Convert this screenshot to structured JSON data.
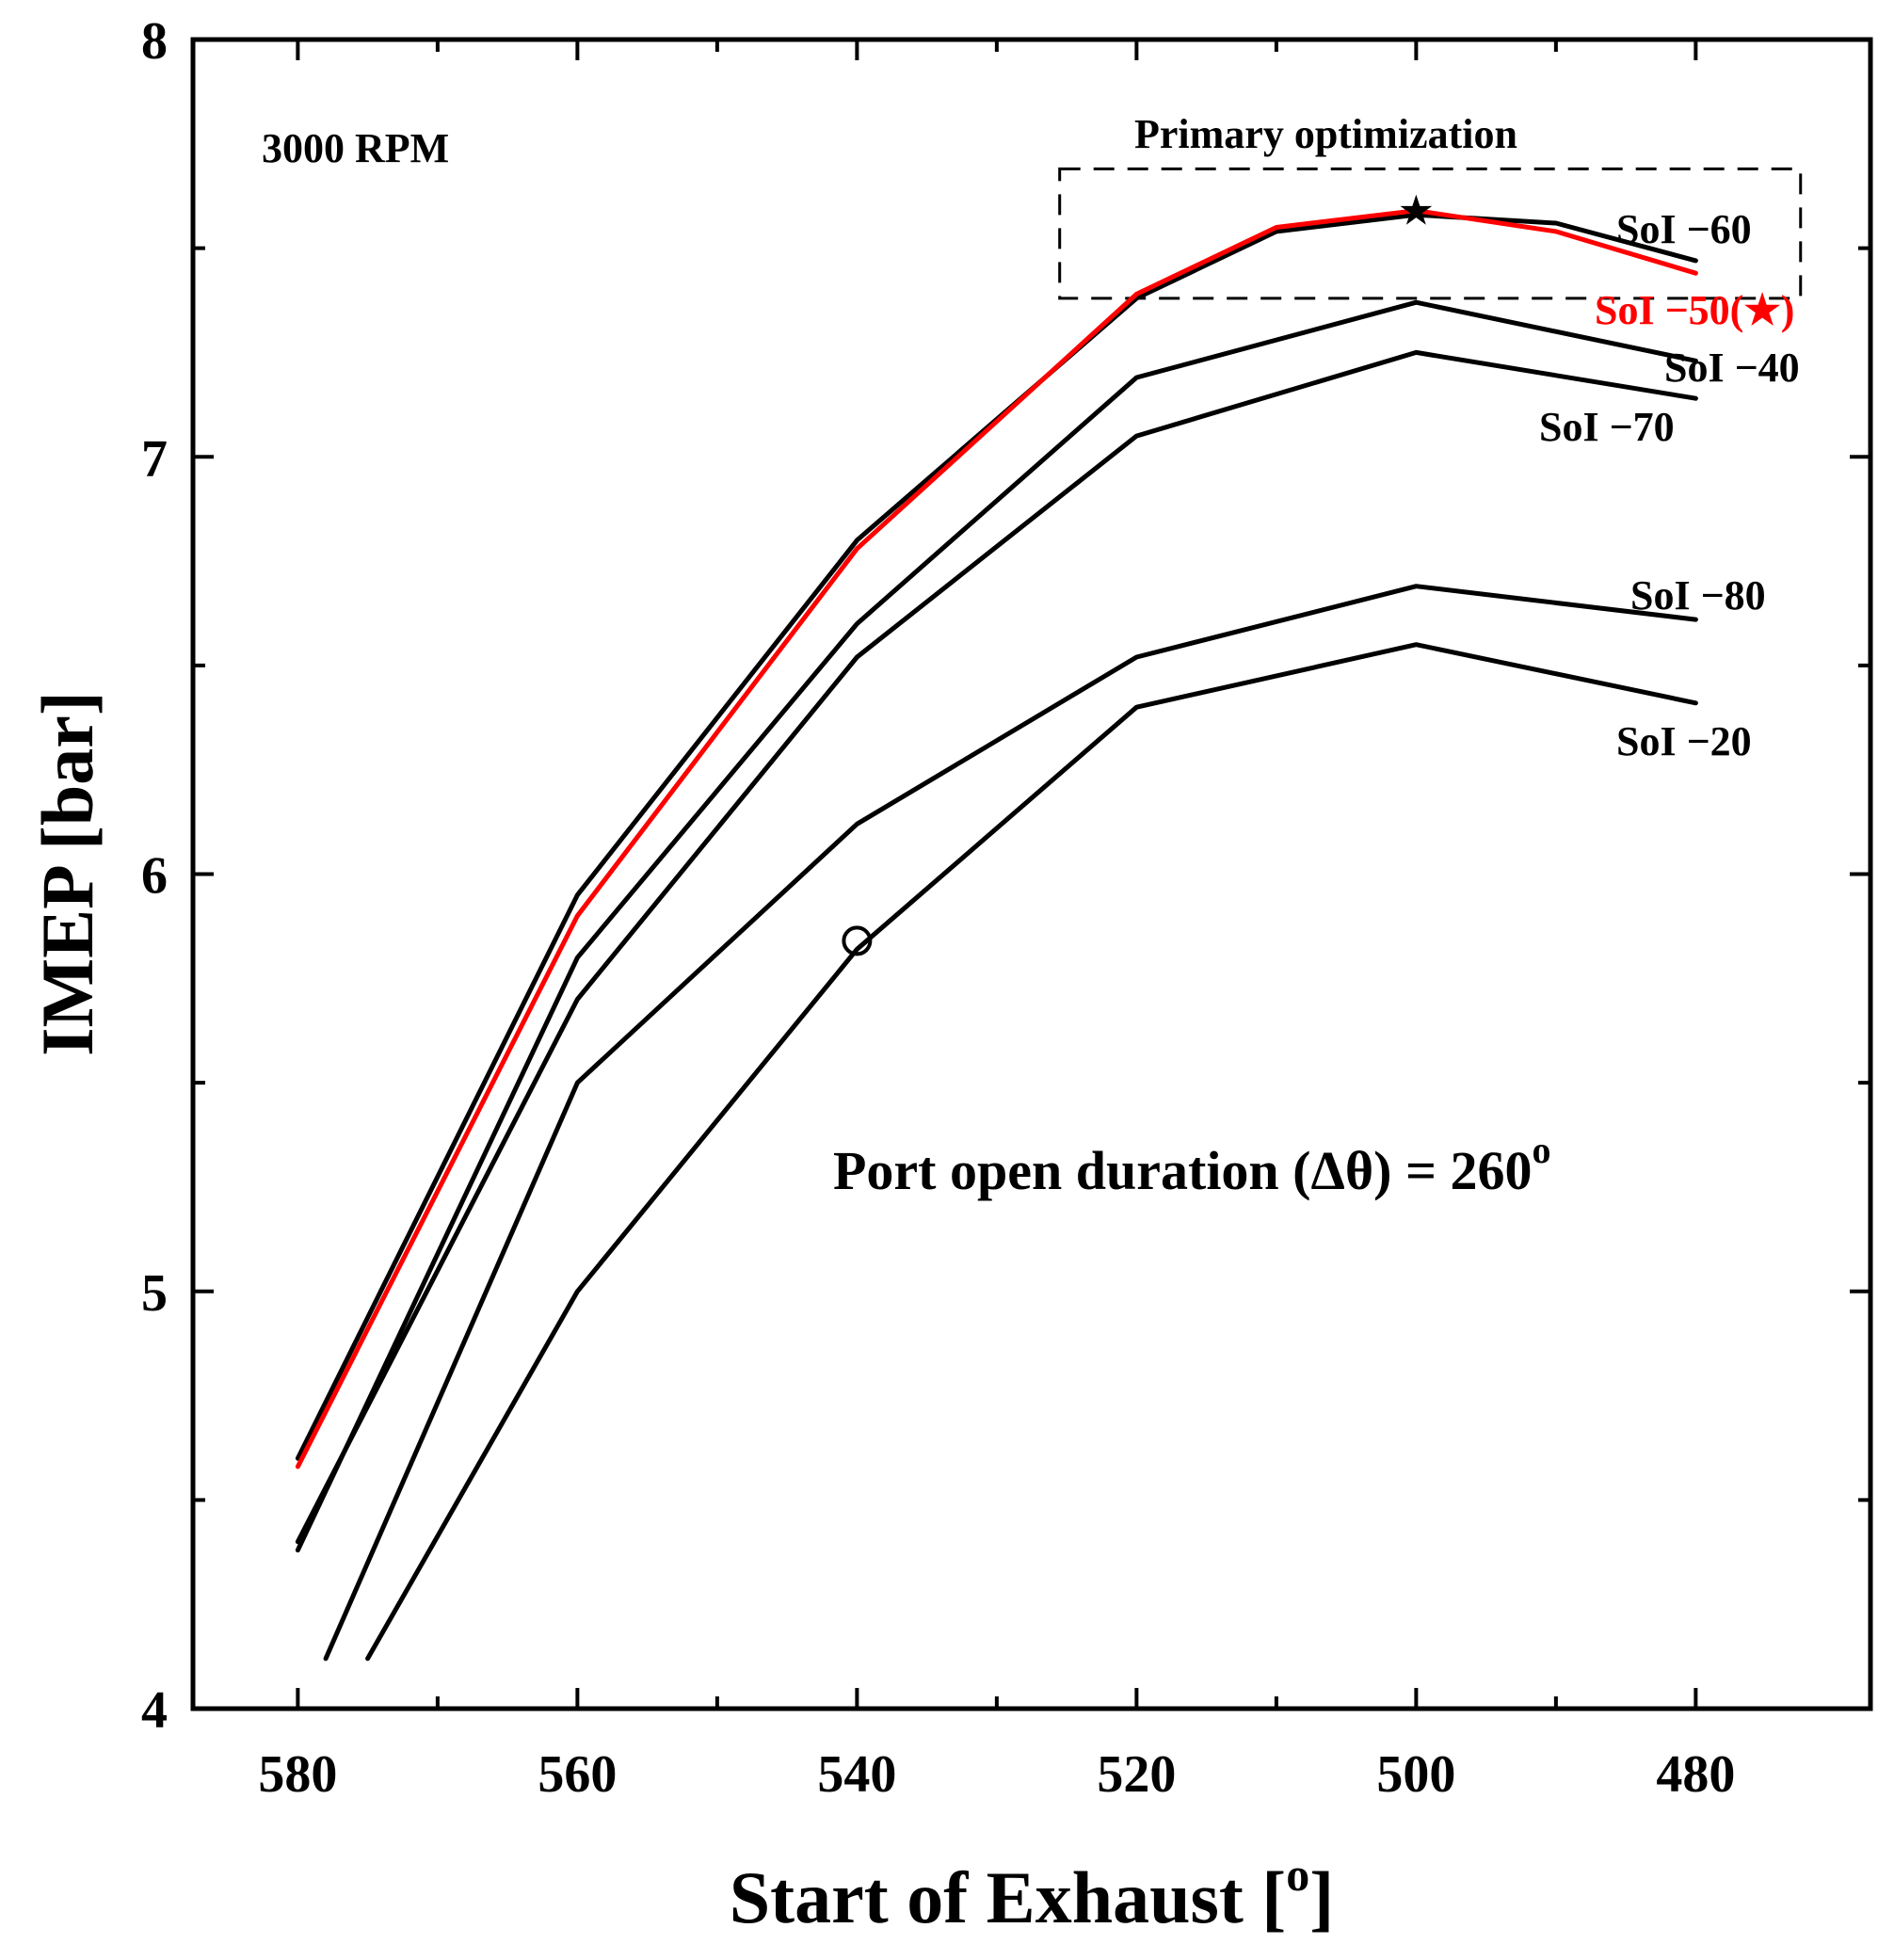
{
  "chart_data": {
    "type": "line",
    "xlabel": "Start  of  Exhaust [",
    "xlabel_sup": "o",
    "xlabel_end": "]",
    "ylabel": "IMEP [bar]",
    "xlim": [
      587.5,
      467.5
    ],
    "ylim": [
      4,
      8
    ],
    "x_ticks": [
      580,
      560,
      540,
      520,
      500,
      480
    ],
    "x_minor_ticks": [
      570,
      550,
      530,
      510,
      490
    ],
    "y_ticks": [
      4,
      5,
      6,
      7,
      8
    ],
    "y_minor_ticks": [
      4.5,
      5.5,
      6.5,
      7.5
    ],
    "grid": false,
    "series": [
      {
        "name": "SoI −60",
        "label": "SoI −60",
        "color": "#000000",
        "x": [
          580,
          560,
          540,
          520,
          510,
          500,
          490,
          480
        ],
        "y": [
          4.6,
          5.95,
          6.8,
          7.38,
          7.54,
          7.58,
          7.56,
          7.47
        ]
      },
      {
        "name": "SoI −50(★)",
        "label": "SoI −50(★)",
        "color": "#ff0000",
        "x": [
          580,
          560,
          540,
          520,
          510,
          500,
          490,
          480
        ],
        "y": [
          4.58,
          5.9,
          6.78,
          7.39,
          7.55,
          7.59,
          7.54,
          7.44
        ]
      },
      {
        "name": "SoI −40",
        "label": "SoI −40",
        "color": "#000000",
        "x": [
          580,
          560,
          540,
          520,
          500,
          480
        ],
        "y": [
          4.38,
          5.8,
          6.6,
          7.19,
          7.37,
          7.23
        ]
      },
      {
        "name": "SoI −70",
        "label": "SoI −70",
        "color": "#000000",
        "x": [
          580,
          560,
          540,
          520,
          500,
          480
        ],
        "y": [
          4.4,
          5.7,
          6.52,
          7.05,
          7.25,
          7.14
        ]
      },
      {
        "name": "SoI −80",
        "label": "SoI −80",
        "color": "#000000",
        "x": [
          578,
          560,
          540,
          520,
          500,
          480
        ],
        "y": [
          4.12,
          5.5,
          6.12,
          6.52,
          6.69,
          6.61
        ]
      },
      {
        "name": "SoI −20",
        "label": "SoI −20",
        "color": "#000000",
        "x": [
          575,
          560,
          540,
          520,
          500,
          480
        ],
        "y": [
          4.12,
          5.0,
          5.82,
          6.4,
          6.55,
          6.41
        ]
      }
    ],
    "markers": [
      {
        "type": "star",
        "symbol": "★",
        "x": 500,
        "y": 7.59
      },
      {
        "type": "circle",
        "x": 540,
        "y": 5.84
      }
    ],
    "annotations": {
      "rpm": "3000 RPM",
      "box_title": "Primary optimization",
      "duration_text": "Port open duration (Δθ) = 260",
      "duration_sup": "o"
    },
    "optimization_box": {
      "x_range": [
        525.5,
        472.5
      ],
      "y_range": [
        7.38,
        7.69
      ]
    }
  }
}
